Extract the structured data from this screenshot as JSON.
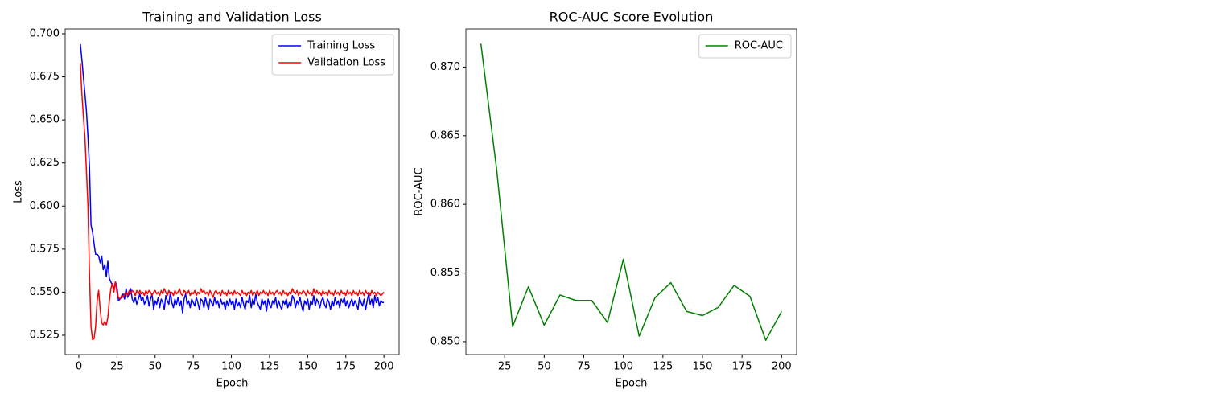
{
  "chart_data": [
    {
      "type": "line",
      "title": "Training and Validation Loss",
      "xlabel": "Epoch",
      "ylabel": "Loss",
      "x": [
        1,
        2,
        3,
        4,
        5,
        6,
        7,
        8,
        9,
        10,
        11,
        12,
        13,
        14,
        15,
        16,
        17,
        18,
        19,
        20,
        21,
        22,
        23,
        24,
        25,
        26,
        27,
        28,
        29,
        30,
        31,
        32,
        33,
        34,
        35,
        36,
        37,
        38,
        39,
        40,
        41,
        42,
        43,
        44,
        45,
        46,
        47,
        48,
        49,
        50,
        51,
        52,
        53,
        54,
        55,
        56,
        57,
        58,
        59,
        60,
        61,
        62,
        63,
        64,
        65,
        66,
        67,
        68,
        69,
        70,
        71,
        72,
        73,
        74,
        75,
        76,
        77,
        78,
        79,
        80,
        81,
        82,
        83,
        84,
        85,
        86,
        87,
        88,
        89,
        90,
        91,
        92,
        93,
        94,
        95,
        96,
        97,
        98,
        99,
        100,
        101,
        102,
        103,
        104,
        105,
        106,
        107,
        108,
        109,
        110,
        111,
        112,
        113,
        114,
        115,
        116,
        117,
        118,
        119,
        120,
        121,
        122,
        123,
        124,
        125,
        126,
        127,
        128,
        129,
        130,
        131,
        132,
        133,
        134,
        135,
        136,
        137,
        138,
        139,
        140,
        141,
        142,
        143,
        144,
        145,
        146,
        147,
        148,
        149,
        150,
        151,
        152,
        153,
        154,
        155,
        156,
        157,
        158,
        159,
        160,
        161,
        162,
        163,
        164,
        165,
        166,
        167,
        168,
        169,
        170,
        171,
        172,
        173,
        174,
        175,
        176,
        177,
        178,
        179,
        180,
        181,
        182,
        183,
        184,
        185,
        186,
        187,
        188,
        189,
        190,
        191,
        192,
        193,
        194,
        195,
        196,
        197,
        198,
        199,
        200
      ],
      "series": [
        {
          "name": "Training Loss",
          "color": "#0000ff",
          "values": [
            0.694,
            0.685,
            0.675,
            0.665,
            0.655,
            0.64,
            0.622,
            0.589,
            0.585,
            0.578,
            0.572,
            0.572,
            0.571,
            0.567,
            0.571,
            0.563,
            0.566,
            0.559,
            0.568,
            0.558,
            0.556,
            0.554,
            0.552,
            0.556,
            0.553,
            0.545,
            0.546,
            0.547,
            0.549,
            0.546,
            0.552,
            0.547,
            0.549,
            0.552,
            0.546,
            0.544,
            0.547,
            0.543,
            0.546,
            0.549,
            0.545,
            0.547,
            0.543,
            0.545,
            0.548,
            0.542,
            0.546,
            0.549,
            0.54,
            0.545,
            0.543,
            0.547,
            0.541,
            0.546,
            0.544,
            0.54,
            0.548,
            0.545,
            0.543,
            0.55,
            0.544,
            0.541,
            0.546,
            0.543,
            0.547,
            0.542,
            0.545,
            0.538,
            0.546,
            0.549,
            0.543,
            0.545,
            0.541,
            0.546,
            0.544,
            0.542,
            0.547,
            0.544,
            0.54,
            0.546,
            0.545,
            0.541,
            0.547,
            0.543,
            0.54,
            0.546,
            0.544,
            0.542,
            0.547,
            0.543,
            0.545,
            0.541,
            0.546,
            0.543,
            0.544,
            0.54,
            0.545,
            0.542,
            0.546,
            0.543,
            0.545,
            0.54,
            0.546,
            0.542,
            0.544,
            0.541,
            0.547,
            0.543,
            0.54,
            0.545,
            0.544,
            0.548,
            0.541,
            0.546,
            0.543,
            0.549,
            0.544,
            0.542,
            0.54,
            0.546,
            0.543,
            0.545,
            0.539,
            0.546,
            0.543,
            0.541,
            0.545,
            0.543,
            0.547,
            0.541,
            0.545,
            0.542,
            0.54,
            0.545,
            0.543,
            0.546,
            0.541,
            0.544,
            0.542,
            0.548,
            0.546,
            0.541,
            0.545,
            0.543,
            0.547,
            0.542,
            0.539,
            0.545,
            0.543,
            0.546,
            0.54,
            0.545,
            0.543,
            0.548,
            0.542,
            0.546,
            0.544,
            0.541,
            0.545,
            0.547,
            0.543,
            0.541,
            0.546,
            0.544,
            0.54,
            0.545,
            0.542,
            0.547,
            0.543,
            0.545,
            0.541,
            0.546,
            0.544,
            0.547,
            0.542,
            0.545,
            0.541,
            0.544,
            0.546,
            0.542,
            0.545,
            0.543,
            0.54,
            0.547,
            0.544,
            0.542,
            0.546,
            0.54,
            0.545,
            0.549,
            0.543,
            0.546,
            0.541,
            0.548,
            0.544,
            0.547,
            0.542,
            0.545,
            0.544,
            0.544
          ]
        },
        {
          "name": "Validation Loss",
          "color": "#ff0000",
          "values": [
            0.683,
            0.665,
            0.652,
            0.64,
            0.62,
            0.6,
            0.56,
            0.53,
            0.5225,
            0.523,
            0.53,
            0.545,
            0.551,
            0.54,
            0.532,
            0.531,
            0.533,
            0.531,
            0.535,
            0.545,
            0.552,
            0.555,
            0.55,
            0.556,
            0.55,
            0.547,
            0.546,
            0.548,
            0.547,
            0.549,
            0.55,
            0.548,
            0.551,
            0.549,
            0.551,
            0.55,
            0.548,
            0.551,
            0.549,
            0.551,
            0.549,
            0.55,
            0.548,
            0.551,
            0.549,
            0.551,
            0.55,
            0.548,
            0.55,
            0.551,
            0.549,
            0.55,
            0.548,
            0.551,
            0.549,
            0.552,
            0.55,
            0.548,
            0.551,
            0.549,
            0.55,
            0.548,
            0.551,
            0.549,
            0.55,
            0.552,
            0.549,
            0.548,
            0.551,
            0.55,
            0.549,
            0.551,
            0.548,
            0.55,
            0.549,
            0.551,
            0.548,
            0.55,
            0.549,
            0.552,
            0.55,
            0.551,
            0.549,
            0.55,
            0.548,
            0.551,
            0.549,
            0.547,
            0.55,
            0.551,
            0.549,
            0.55,
            0.548,
            0.551,
            0.549,
            0.55,
            0.548,
            0.551,
            0.549,
            0.55,
            0.548,
            0.551,
            0.549,
            0.55,
            0.549,
            0.548,
            0.551,
            0.549,
            0.55,
            0.548,
            0.55,
            0.549,
            0.551,
            0.548,
            0.55,
            0.549,
            0.551,
            0.548,
            0.55,
            0.549,
            0.551,
            0.549,
            0.55,
            0.548,
            0.551,
            0.549,
            0.55,
            0.548,
            0.55,
            0.551,
            0.549,
            0.55,
            0.548,
            0.551,
            0.549,
            0.55,
            0.548,
            0.55,
            0.549,
            0.552,
            0.55,
            0.549,
            0.551,
            0.548,
            0.55,
            0.549,
            0.551,
            0.55,
            0.548,
            0.551,
            0.549,
            0.55,
            0.548,
            0.552,
            0.549,
            0.551,
            0.549,
            0.55,
            0.548,
            0.551,
            0.549,
            0.55,
            0.548,
            0.551,
            0.549,
            0.55,
            0.548,
            0.551,
            0.549,
            0.55,
            0.548,
            0.551,
            0.549,
            0.55,
            0.548,
            0.551,
            0.549,
            0.55,
            0.548,
            0.551,
            0.549,
            0.55,
            0.548,
            0.551,
            0.549,
            0.55,
            0.548,
            0.551,
            0.549,
            0.55,
            0.548,
            0.551,
            0.549,
            0.55,
            0.548,
            0.55,
            0.549,
            0.548,
            0.549,
            0.55
          ]
        }
      ],
      "xlim": [
        -8.95,
        209.95
      ],
      "xticks": [
        0,
        25,
        50,
        75,
        100,
        125,
        150,
        175,
        200
      ],
      "ylim": [
        0.5138,
        0.7028
      ],
      "yticks": [
        0.525,
        {
          "value": 0.55,
          "label": "0.550"
        },
        0.575,
        {
          "value": 0.6,
          "label": "0.600"
        },
        0.625,
        {
          "value": 0.65,
          "label": "0.650"
        },
        0.675,
        {
          "value": 0.7,
          "label": "0.700"
        }
      ],
      "legend": "upper right"
    },
    {
      "type": "line",
      "title": "ROC-AUC Score Evolution",
      "xlabel": "Epoch",
      "ylabel": "ROC-AUC",
      "x": [
        10,
        20,
        30,
        40,
        50,
        60,
        70,
        80,
        90,
        100,
        110,
        120,
        130,
        140,
        150,
        160,
        170,
        180,
        190,
        200
      ],
      "series": [
        {
          "name": "ROC-AUC",
          "color": "#008000",
          "values": [
            0.8717,
            0.8625,
            0.8511,
            0.854,
            0.8512,
            0.8534,
            0.853,
            0.853,
            0.8514,
            0.856,
            0.8504,
            0.8532,
            0.8543,
            0.8522,
            0.8519,
            0.8525,
            0.8541,
            0.8533,
            0.8501,
            0.8522
          ]
        }
      ],
      "xlim": [
        0.5,
        209.5
      ],
      "xticks": [
        25,
        50,
        75,
        100,
        125,
        150,
        175,
        200
      ],
      "ylim": [
        0.84906,
        0.87278
      ],
      "yticks": [
        {
          "value": 0.85,
          "label": "0.850"
        },
        0.855,
        {
          "value": 0.86,
          "label": "0.860"
        },
        0.865,
        {
          "value": 0.87,
          "label": "0.870"
        }
      ],
      "legend": "upper right"
    }
  ]
}
